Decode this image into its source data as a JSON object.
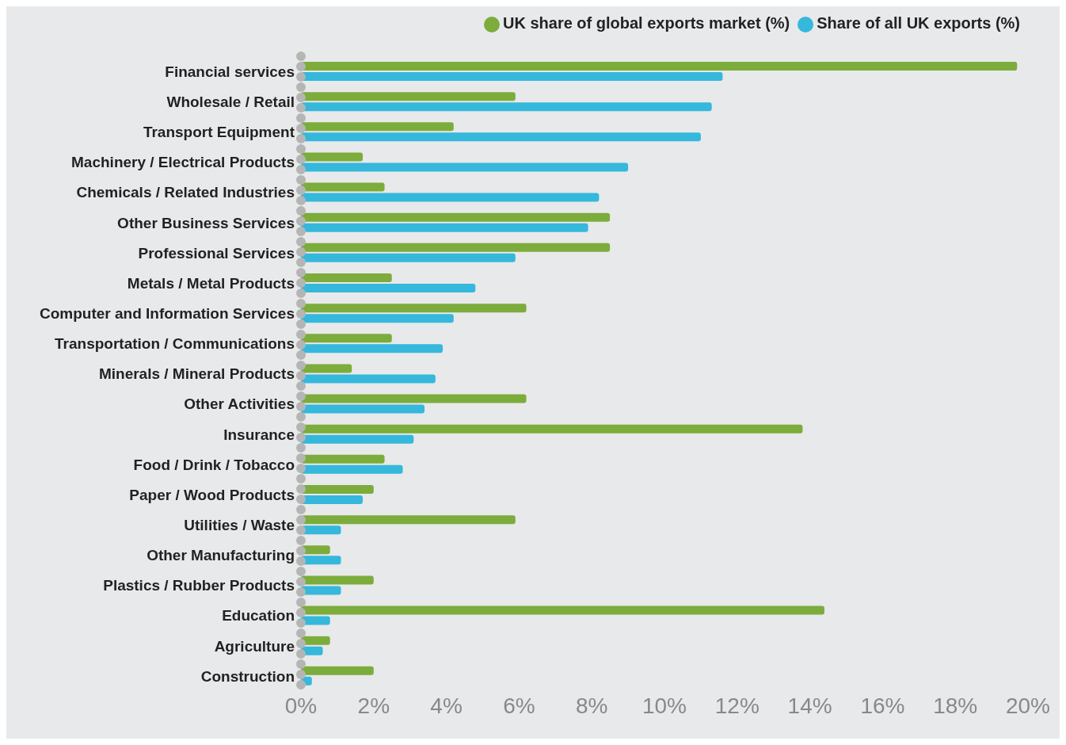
{
  "chart_data": {
    "type": "bar",
    "orientation": "horizontal",
    "categories": [
      "Financial services",
      "Wholesale / Retail",
      "Transport Equipment",
      "Machinery / Electrical Products",
      "Chemicals / Related Industries",
      "Other Business Services",
      "Professional Services",
      "Metals / Metal Products",
      "Computer and Information Services",
      "Transportation / Communications",
      "Minerals / Mineral Products",
      "Other Activities",
      "Insurance",
      "Food / Drink / Tobacco",
      "Paper / Wood Products",
      "Utilities / Waste",
      "Other Manufacturing",
      "Plastics / Rubber Products",
      "Education",
      "Agriculture",
      "Construction"
    ],
    "series": [
      {
        "name": "UK share of global exports market (%)",
        "color": "#7cac3c",
        "values": [
          19.7,
          5.9,
          4.2,
          1.7,
          2.3,
          8.5,
          8.5,
          2.5,
          6.2,
          2.5,
          1.4,
          6.2,
          13.8,
          2.3,
          2.0,
          5.9,
          0.8,
          2.0,
          14.4,
          0.8,
          2.0
        ]
      },
      {
        "name": "Share of all UK exports (%)",
        "color": "#35b8dc",
        "values": [
          11.6,
          11.3,
          11.0,
          9.0,
          8.2,
          7.9,
          5.9,
          4.8,
          4.2,
          3.9,
          3.7,
          3.4,
          3.1,
          2.8,
          1.7,
          1.1,
          1.1,
          1.1,
          0.8,
          0.6,
          0.3
        ]
      }
    ],
    "xlim": [
      0,
      20
    ],
    "xticks": [
      {
        "value": 0,
        "label": "0%"
      },
      {
        "value": 2,
        "label": "2%"
      },
      {
        "value": 4,
        "label": "4%"
      },
      {
        "value": 6,
        "label": "6%"
      },
      {
        "value": 8,
        "label": "8%"
      },
      {
        "value": 10,
        "label": "10%"
      },
      {
        "value": 12,
        "label": "12%"
      },
      {
        "value": 14,
        "label": "14%"
      },
      {
        "value": 16,
        "label": "16%"
      },
      {
        "value": 18,
        "label": "18%"
      },
      {
        "value": 20,
        "label": "20%"
      }
    ],
    "grid": false,
    "legend": "top right"
  }
}
